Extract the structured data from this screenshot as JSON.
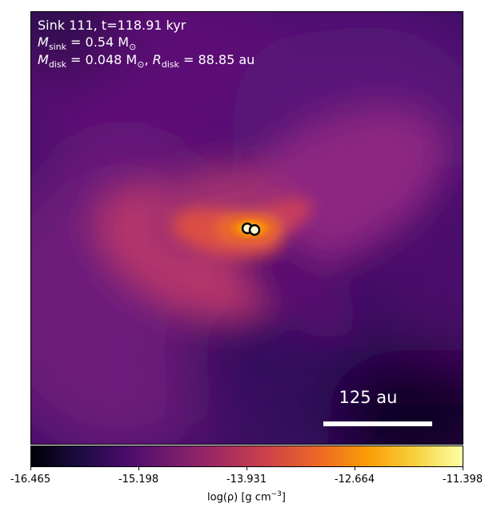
{
  "annotations": {
    "line1": "Sink 111, t=118.91 kyr",
    "msink_symbol": "M",
    "msink_sub": "sink",
    "msink_value": " = 0.54 M",
    "msink_unit_sub": "⊙",
    "mdisk_symbol": "M",
    "mdisk_sub": "disk",
    "mdisk_value": " = 0.048 M",
    "mdisk_unit_sub": "⊙",
    "rdisk_sep": ", ",
    "rdisk_symbol": "R",
    "rdisk_sub": "disk",
    "rdisk_value": " = 88.85 au"
  },
  "scale_bar": {
    "label": "125 au",
    "length_au": 125
  },
  "colorbar": {
    "label_main": "log(ρ) [g cm",
    "label_exp": "−3",
    "label_end": "]",
    "colormap": "inferno",
    "vmin": -16.465,
    "vmax": -11.398,
    "ticks": [
      "-16.465",
      "-15.198",
      "-13.931",
      "-12.664",
      "-11.398"
    ]
  },
  "sinks": {
    "count": 2,
    "edge_color": "#000000",
    "fill_color": "#fff8d0"
  }
}
